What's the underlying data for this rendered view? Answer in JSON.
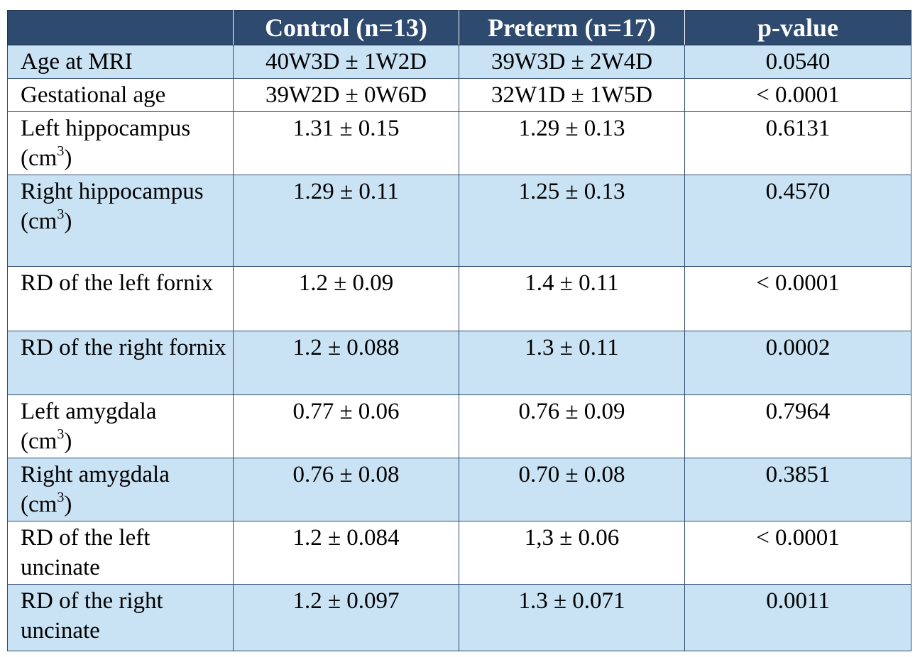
{
  "headers": [
    "",
    "Control (n=13)",
    "Preterm (n=17)",
    "p-value"
  ],
  "rows": [
    {
      "label": "Age at MRI",
      "unit_prefix": "",
      "unit_sup": "",
      "unit_suffix": "",
      "control": "40W3D ± 1W2D",
      "preterm": "39W3D ± 2W4D",
      "p": "0.0540"
    },
    {
      "label": "Gestational age",
      "unit_prefix": "",
      "unit_sup": "",
      "unit_suffix": "",
      "control": "39W2D ± 0W6D",
      "preterm": "32W1D ± 1W5D",
      "p": "< 0.0001"
    },
    {
      "label": "Left hippocampus",
      "unit_prefix": "(cm",
      "unit_sup": "3",
      "unit_suffix": ")",
      "control": "1.31 ± 0.15",
      "preterm": "1.29 ± 0.13",
      "p": "0.6131"
    },
    {
      "label": "Right hippocampus",
      "unit_prefix": "(cm",
      "unit_sup": "3",
      "unit_suffix": ")",
      "control": "1.29 ± 0.11",
      "preterm": "1.25 ± 0.13",
      "p": "0.4570"
    },
    {
      "label": "RD of the left fornix",
      "unit_prefix": "",
      "unit_sup": "",
      "unit_suffix": "",
      "control": "1.2 ± 0.09",
      "preterm": "1.4 ± 0.11",
      "p": "< 0.0001"
    },
    {
      "label": "RD of the right fornix",
      "unit_prefix": "",
      "unit_sup": "",
      "unit_suffix": "",
      "control": "1.2 ± 0.088",
      "preterm": "1.3 ± 0.11",
      "p": "0.0002"
    },
    {
      "label": "Left amygdala",
      "unit_prefix": "(cm",
      "unit_sup": "3",
      "unit_suffix": ")",
      "control": "0.77 ± 0.06",
      "preterm": "0.76 ± 0.09",
      "p": "0.7964"
    },
    {
      "label": "Right amygdala",
      "unit_prefix": "(cm",
      "unit_sup": "3",
      "unit_suffix": ")",
      "control": "0.76 ± 0.08",
      "preterm": "0.70 ± 0.08",
      "p": "0.3851"
    },
    {
      "label": "RD of the left uncinate",
      "unit_prefix": "",
      "unit_sup": "",
      "unit_suffix": "",
      "control": "1.2 ± 0.084",
      "preterm": "1,3 ± 0.06",
      "p": "< 0.0001"
    },
    {
      "label": "RD of the right uncinate",
      "unit_prefix": "",
      "unit_sup": "",
      "unit_suffix": "",
      "control": "1.2 ± 0.097",
      "preterm": "1.3 ± 0.071",
      "p": "0.0011"
    }
  ],
  "colors": {
    "header_bg": "#2e4a6e",
    "header_text": "#ffffff",
    "shade_row": "#c9e3f4",
    "plain_row": "#ffffff",
    "border": "#2e4a6e"
  }
}
